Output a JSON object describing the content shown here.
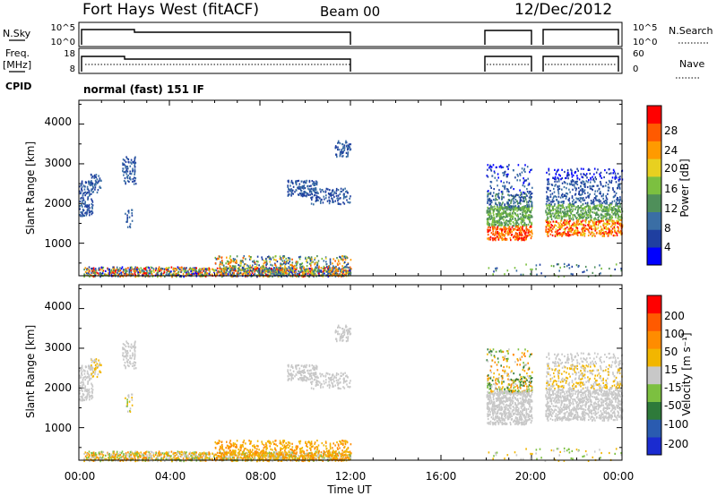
{
  "header": {
    "station": "Fort Hays West (fitACF)",
    "beam": "Beam 00",
    "date": "12/Dec/2012"
  },
  "labels": {
    "nsky": "N.Sky",
    "nsearch": "N.Search",
    "freq": "Freq.",
    "freq_unit": "[MHz]",
    "nave": "Nave",
    "cpid": "CPID",
    "cpid_value": "normal (fast) 151 IF",
    "time_axis": "Time UT"
  },
  "panels": {
    "noise": {
      "left_ticks": [
        "10^5",
        "10^0"
      ],
      "right_ticks": [
        "10^5",
        "10^0"
      ]
    },
    "freq": {
      "left_ticks": [
        "18",
        "8"
      ],
      "right_ticks": [
        "60",
        "0"
      ]
    }
  },
  "colors": {
    "power_scale": [
      "#0000ff",
      "#1f3fa0",
      "#3a6ea5",
      "#4f8f5a",
      "#7cc040",
      "#e8d020",
      "#ff9a00",
      "#ff5a00",
      "#ff0000"
    ],
    "velocity_scale": [
      "#1a2bd0",
      "#2a5bb0",
      "#2e7a3a",
      "#7cc040",
      "#c8c8c8",
      "#f2b600",
      "#ff8c00",
      "#ff5a00",
      "#ff0000"
    ]
  },
  "chart_data": [
    {
      "type": "heatmap",
      "name": "power",
      "ylabel": "Slant Range [km]",
      "xlabel": "Time UT",
      "ylim": [
        180,
        4600
      ],
      "yticks": [
        "4000",
        "3000",
        "2000",
        "1000"
      ],
      "x_tick_labels": [
        "00:00",
        "04:00",
        "08:00",
        "12:00",
        "16:00",
        "20:00",
        "00:00"
      ],
      "colorbar_label": "Power [dB]",
      "colorbar_ticks": [
        "28",
        "24",
        "20",
        "16",
        "12",
        "8",
        "4"
      ],
      "data_gaps_hours": [
        [
          12,
          18
        ],
        [
          20,
          20.5
        ]
      ]
    },
    {
      "type": "heatmap",
      "name": "velocity",
      "ylabel": "Slant Range [km]",
      "xlabel": "Time UT",
      "ylim": [
        180,
        4600
      ],
      "yticks": [
        "4000",
        "3000",
        "2000",
        "1000"
      ],
      "x_tick_labels": [
        "00:00",
        "04:00",
        "08:00",
        "12:00",
        "16:00",
        "20:00",
        "00:00"
      ],
      "colorbar_label": "Velocity [m s⁻¹]",
      "colorbar_ticks": [
        "200",
        "100",
        "50",
        "15",
        "-15",
        "-50",
        "-100",
        "-200"
      ],
      "data_gaps_hours": [
        [
          12,
          18
        ],
        [
          20,
          20.5
        ]
      ]
    }
  ]
}
